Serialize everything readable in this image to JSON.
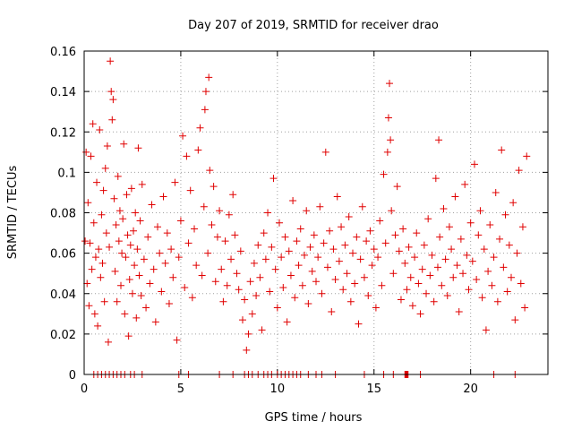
{
  "chart_data": {
    "type": "scatter",
    "title": "Day 207 of 2019, SRMTID for receiver drao",
    "xlabel": "GPS time / hours",
    "ylabel": "SRMTID / TECUs",
    "xlim": [
      0,
      24
    ],
    "ylim": [
      0,
      0.16
    ],
    "xticks": [
      0,
      5,
      10,
      15,
      20
    ],
    "xtick_labels": [
      "0",
      "5",
      "10",
      "15",
      "20"
    ],
    "yticks": [
      0,
      0.02,
      0.04,
      0.06,
      0.08,
      0.1,
      0.12,
      0.14,
      0.16
    ],
    "ytick_labels": [
      "0",
      "0.02",
      "0.04",
      "0.06",
      "0.08",
      "0.1",
      "0.12",
      "0.14",
      "0.16"
    ],
    "grid": true,
    "marker": "plus",
    "color": "#e00000",
    "series": [
      {
        "name": "SRMTID",
        "points": [
          [
            0.05,
            0.066
          ],
          [
            0.1,
            0.11
          ],
          [
            0.15,
            0.045
          ],
          [
            0.2,
            0.085
          ],
          [
            0.25,
            0.034
          ],
          [
            0.3,
            0.065
          ],
          [
            0.35,
            0.108
          ],
          [
            0.4,
            0.052
          ],
          [
            0.45,
            0.124
          ],
          [
            0.5,
            0.075
          ],
          [
            0.55,
            0.03
          ],
          [
            0.6,
            0.058
          ],
          [
            0.65,
            0.095
          ],
          [
            0.7,
            0.024
          ],
          [
            0.75,
            0.062
          ],
          [
            0.8,
            0.121
          ],
          [
            0.85,
            0.048
          ],
          [
            0.9,
            0.079
          ],
          [
            0.95,
            0.055
          ],
          [
            1.0,
            0.091
          ],
          [
            1.05,
            0.036
          ],
          [
            1.1,
            0.102
          ],
          [
            1.15,
            0.07
          ],
          [
            1.2,
            0.113
          ],
          [
            1.25,
            0.016
          ],
          [
            1.3,
            0.063
          ],
          [
            1.35,
            0.155
          ],
          [
            1.4,
            0.14
          ],
          [
            1.45,
            0.126
          ],
          [
            1.5,
            0.136
          ],
          [
            1.55,
            0.087
          ],
          [
            1.6,
            0.051
          ],
          [
            1.65,
            0.074
          ],
          [
            1.7,
            0.036
          ],
          [
            1.75,
            0.098
          ],
          [
            1.8,
            0.066
          ],
          [
            1.85,
            0.081
          ],
          [
            1.9,
            0.044
          ],
          [
            1.95,
            0.06
          ],
          [
            2.0,
            0.077
          ],
          [
            2.05,
            0.114
          ],
          [
            2.1,
            0.03
          ],
          [
            2.15,
            0.058
          ],
          [
            2.2,
            0.089
          ],
          [
            2.25,
            0.069
          ],
          [
            2.3,
            0.019
          ],
          [
            2.35,
            0.047
          ],
          [
            2.4,
            0.064
          ],
          [
            2.45,
            0.092
          ],
          [
            2.5,
            0.04
          ],
          [
            2.55,
            0.071
          ],
          [
            2.6,
            0.054
          ],
          [
            2.65,
            0.08
          ],
          [
            2.7,
            0.028
          ],
          [
            2.75,
            0.062
          ],
          [
            2.8,
            0.112
          ],
          [
            2.85,
            0.049
          ],
          [
            2.9,
            0.076
          ],
          [
            2.95,
            0.039
          ],
          [
            3.0,
            0.094
          ],
          [
            3.1,
            0.057
          ],
          [
            3.2,
            0.033
          ],
          [
            3.3,
            0.068
          ],
          [
            3.4,
            0.045
          ],
          [
            3.5,
            0.084
          ],
          [
            3.6,
            0.052
          ],
          [
            3.7,
            0.026
          ],
          [
            3.8,
            0.073
          ],
          [
            3.9,
            0.06
          ],
          [
            4.0,
            0.041
          ],
          [
            4.1,
            0.088
          ],
          [
            4.2,
            0.055
          ],
          [
            4.3,
            0.07
          ],
          [
            4.4,
            0.035
          ],
          [
            4.5,
            0.062
          ],
          [
            4.6,
            0.048
          ],
          [
            4.7,
            0.095
          ],
          [
            4.8,
            0.017
          ],
          [
            4.9,
            0.058
          ],
          [
            5.0,
            0.076
          ],
          [
            5.1,
            0.118
          ],
          [
            5.2,
            0.043
          ],
          [
            5.3,
            0.108
          ],
          [
            5.4,
            0.065
          ],
          [
            5.5,
            0.091
          ],
          [
            5.6,
            0.038
          ],
          [
            5.7,
            0.072
          ],
          [
            5.8,
            0.054
          ],
          [
            5.9,
            0.111
          ],
          [
            6.0,
            0.122
          ],
          [
            6.1,
            0.049
          ],
          [
            6.2,
            0.083
          ],
          [
            6.25,
            0.131
          ],
          [
            6.3,
            0.14
          ],
          [
            6.4,
            0.06
          ],
          [
            6.45,
            0.147
          ],
          [
            6.5,
            0.101
          ],
          [
            6.6,
            0.074
          ],
          [
            6.7,
            0.093
          ],
          [
            6.8,
            0.046
          ],
          [
            6.9,
            0.068
          ],
          [
            7.0,
            0.081
          ],
          [
            7.1,
            0.052
          ],
          [
            7.2,
            0.036
          ],
          [
            7.3,
            0.066
          ],
          [
            7.4,
            0.044
          ],
          [
            7.5,
            0.079
          ],
          [
            7.6,
            0.057
          ],
          [
            7.7,
            0.089
          ],
          [
            7.8,
            0.069
          ],
          [
            7.9,
            0.05
          ],
          [
            8.0,
            0.042
          ],
          [
            8.1,
            0.061
          ],
          [
            8.2,
            0.027
          ],
          [
            8.3,
            0.037
          ],
          [
            8.4,
            0.012
          ],
          [
            8.5,
            0.02
          ],
          [
            8.6,
            0.046
          ],
          [
            8.7,
            0.03
          ],
          [
            8.8,
            0.055
          ],
          [
            8.9,
            0.039
          ],
          [
            9.0,
            0.064
          ],
          [
            9.1,
            0.048
          ],
          [
            9.2,
            0.022
          ],
          [
            9.3,
            0.07
          ],
          [
            9.4,
            0.057
          ],
          [
            9.5,
            0.08
          ],
          [
            9.6,
            0.041
          ],
          [
            9.7,
            0.063
          ],
          [
            9.8,
            0.097
          ],
          [
            9.9,
            0.052
          ],
          [
            10.0,
            0.033
          ],
          [
            10.1,
            0.075
          ],
          [
            10.2,
            0.058
          ],
          [
            10.3,
            0.043
          ],
          [
            10.4,
            0.068
          ],
          [
            10.5,
            0.026
          ],
          [
            10.6,
            0.061
          ],
          [
            10.7,
            0.049
          ],
          [
            10.8,
            0.086
          ],
          [
            10.9,
            0.038
          ],
          [
            11.0,
            0.066
          ],
          [
            11.1,
            0.054
          ],
          [
            11.2,
            0.072
          ],
          [
            11.3,
            0.044
          ],
          [
            11.4,
            0.059
          ],
          [
            11.5,
            0.081
          ],
          [
            11.6,
            0.035
          ],
          [
            11.7,
            0.063
          ],
          [
            11.8,
            0.051
          ],
          [
            11.9,
            0.069
          ],
          [
            12.0,
            0.046
          ],
          [
            12.1,
            0.058
          ],
          [
            12.2,
            0.083
          ],
          [
            12.3,
            0.04
          ],
          [
            12.4,
            0.065
          ],
          [
            12.5,
            0.11
          ],
          [
            12.6,
            0.053
          ],
          [
            12.7,
            0.071
          ],
          [
            12.8,
            0.031
          ],
          [
            12.9,
            0.062
          ],
          [
            13.0,
            0.047
          ],
          [
            13.1,
            0.088
          ],
          [
            13.2,
            0.056
          ],
          [
            13.3,
            0.073
          ],
          [
            13.4,
            0.042
          ],
          [
            13.5,
            0.064
          ],
          [
            13.6,
            0.05
          ],
          [
            13.7,
            0.078
          ],
          [
            13.8,
            0.036
          ],
          [
            13.9,
            0.06
          ],
          [
            14.0,
            0.045
          ],
          [
            14.1,
            0.068
          ],
          [
            14.2,
            0.025
          ],
          [
            14.3,
            0.057
          ],
          [
            14.4,
            0.083
          ],
          [
            14.5,
            0.048
          ],
          [
            14.6,
            0.066
          ],
          [
            14.7,
            0.039
          ],
          [
            14.8,
            0.071
          ],
          [
            14.9,
            0.054
          ],
          [
            15.0,
            0.062
          ],
          [
            15.1,
            0.033
          ],
          [
            15.2,
            0.058
          ],
          [
            15.3,
            0.076
          ],
          [
            15.4,
            0.044
          ],
          [
            15.5,
            0.099
          ],
          [
            15.6,
            0.065
          ],
          [
            15.7,
            0.11
          ],
          [
            15.75,
            0.127
          ],
          [
            15.8,
            0.144
          ],
          [
            15.85,
            0.116
          ],
          [
            15.9,
            0.081
          ],
          [
            16.0,
            0.05
          ],
          [
            16.1,
            0.069
          ],
          [
            16.2,
            0.093
          ],
          [
            16.3,
            0.061
          ],
          [
            16.4,
            0.037
          ],
          [
            16.5,
            0.072
          ],
          [
            16.6,
            0.055
          ],
          [
            16.7,
            0.042
          ],
          [
            16.8,
            0.063
          ],
          [
            16.9,
            0.048
          ],
          [
            17.0,
            0.034
          ],
          [
            17.1,
            0.058
          ],
          [
            17.2,
            0.07
          ],
          [
            17.3,
            0.045
          ],
          [
            17.4,
            0.03
          ],
          [
            17.5,
            0.052
          ],
          [
            17.6,
            0.064
          ],
          [
            17.7,
            0.04
          ],
          [
            17.8,
            0.077
          ],
          [
            17.9,
            0.049
          ],
          [
            18.0,
            0.059
          ],
          [
            18.1,
            0.036
          ],
          [
            18.2,
            0.097
          ],
          [
            18.3,
            0.053
          ],
          [
            18.35,
            0.116
          ],
          [
            18.4,
            0.068
          ],
          [
            18.5,
            0.044
          ],
          [
            18.6,
            0.082
          ],
          [
            18.7,
            0.057
          ],
          [
            18.8,
            0.039
          ],
          [
            18.9,
            0.073
          ],
          [
            19.0,
            0.062
          ],
          [
            19.1,
            0.048
          ],
          [
            19.2,
            0.088
          ],
          [
            19.3,
            0.054
          ],
          [
            19.4,
            0.031
          ],
          [
            19.5,
            0.067
          ],
          [
            19.6,
            0.05
          ],
          [
            19.7,
            0.094
          ],
          [
            19.8,
            0.059
          ],
          [
            19.9,
            0.042
          ],
          [
            20.0,
            0.075
          ],
          [
            20.1,
            0.056
          ],
          [
            20.2,
            0.104
          ],
          [
            20.3,
            0.047
          ],
          [
            20.4,
            0.069
          ],
          [
            20.5,
            0.081
          ],
          [
            20.6,
            0.038
          ],
          [
            20.7,
            0.062
          ],
          [
            20.8,
            0.022
          ],
          [
            20.9,
            0.051
          ],
          [
            21.0,
            0.074
          ],
          [
            21.1,
            0.044
          ],
          [
            21.2,
            0.058
          ],
          [
            21.3,
            0.09
          ],
          [
            21.4,
            0.036
          ],
          [
            21.5,
            0.067
          ],
          [
            21.6,
            0.111
          ],
          [
            21.7,
            0.053
          ],
          [
            21.8,
            0.079
          ],
          [
            21.9,
            0.041
          ],
          [
            22.0,
            0.064
          ],
          [
            22.1,
            0.048
          ],
          [
            22.2,
            0.085
          ],
          [
            22.3,
            0.027
          ],
          [
            22.4,
            0.06
          ],
          [
            22.5,
            0.101
          ],
          [
            22.6,
            0.045
          ],
          [
            22.7,
            0.073
          ],
          [
            22.8,
            0.033
          ],
          [
            22.9,
            0.108
          ]
        ]
      }
    ],
    "zero_points": [
      0.5,
      0.7,
      0.9,
      1.1,
      1.3,
      1.5,
      1.7,
      1.9,
      2.1,
      2.4,
      2.6,
      3.0,
      4.9,
      5.4,
      7.0,
      7.7,
      8.3,
      8.5,
      8.7,
      9.0,
      9.3,
      9.5,
      9.7,
      10.0,
      10.2,
      10.4,
      10.6,
      10.8,
      11.0,
      11.2,
      11.6,
      12.0,
      12.3,
      13.0,
      14.5,
      15.5,
      16.0,
      16.6,
      16.62,
      16.64,
      16.66,
      16.68,
      16.7,
      16.72,
      16.74,
      16.76,
      17.4,
      21.2,
      22.3
    ]
  }
}
